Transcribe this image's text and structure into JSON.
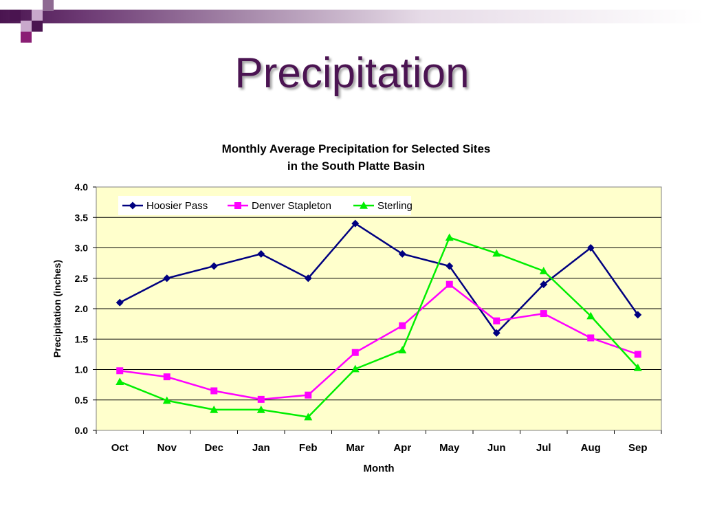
{
  "slide": {
    "title": "Precipitation"
  },
  "chart_data": {
    "type": "line",
    "title_line1": "Monthly Average Precipitation for Selected Sites",
    "title_line2": "in the South Platte Basin",
    "xlabel": "Month",
    "ylabel": "Precipitation (inches)",
    "categories": [
      "Oct",
      "Nov",
      "Dec",
      "Jan",
      "Feb",
      "Mar",
      "Apr",
      "May",
      "Jun",
      "Jul",
      "Aug",
      "Sep"
    ],
    "ylim": [
      0,
      4
    ],
    "yticks": [
      "0.0",
      "0.5",
      "1.0",
      "1.5",
      "2.0",
      "2.5",
      "3.0",
      "3.5",
      "4.0"
    ],
    "grid": true,
    "legend_position": "top-left",
    "plot_background": "#ffffcc",
    "series": [
      {
        "name": "Hoosier Pass",
        "color": "#000080",
        "marker": "diamond",
        "values": [
          2.1,
          2.5,
          2.7,
          2.9,
          2.5,
          3.4,
          2.9,
          2.7,
          1.6,
          2.4,
          3.0,
          1.9
        ]
      },
      {
        "name": "Denver Stapleton",
        "color": "#ff00ff",
        "marker": "square",
        "values": [
          0.98,
          0.88,
          0.65,
          0.51,
          0.58,
          1.28,
          1.72,
          2.4,
          1.8,
          1.92,
          1.52,
          1.25
        ]
      },
      {
        "name": "Sterling",
        "color": "#00ee00",
        "marker": "triangle",
        "values": [
          0.8,
          0.49,
          0.34,
          0.34,
          0.22,
          1.01,
          1.32,
          3.17,
          2.91,
          2.62,
          1.88,
          1.03
        ]
      }
    ]
  }
}
